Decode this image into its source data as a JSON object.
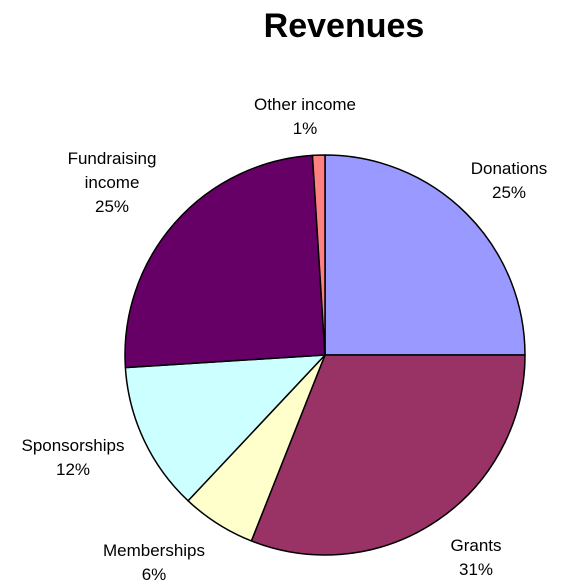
{
  "chart_data": {
    "type": "pie",
    "title": "Revenues",
    "slices": [
      {
        "label_lines": [
          "Donations"
        ],
        "percent_label": "25%",
        "value": 25,
        "color": "#9999ff"
      },
      {
        "label_lines": [
          "Grants"
        ],
        "percent_label": "31%",
        "value": 31,
        "color": "#993366"
      },
      {
        "label_lines": [
          "Memberships"
        ],
        "percent_label": "6%",
        "value": 6,
        "color": "#ffffcc"
      },
      {
        "label_lines": [
          "Sponsorships"
        ],
        "percent_label": "12%",
        "value": 12,
        "color": "#ccffff"
      },
      {
        "label_lines": [
          "Fundraising",
          "income"
        ],
        "percent_label": "25%",
        "value": 25,
        "color": "#660066"
      },
      {
        "label_lines": [
          "Other income"
        ],
        "percent_label": "1%",
        "value": 1,
        "color": "#ff8080"
      }
    ],
    "start_position": "12 o'clock",
    "direction": "clockwise",
    "legend": "none",
    "slice_border_color": "#000000"
  }
}
